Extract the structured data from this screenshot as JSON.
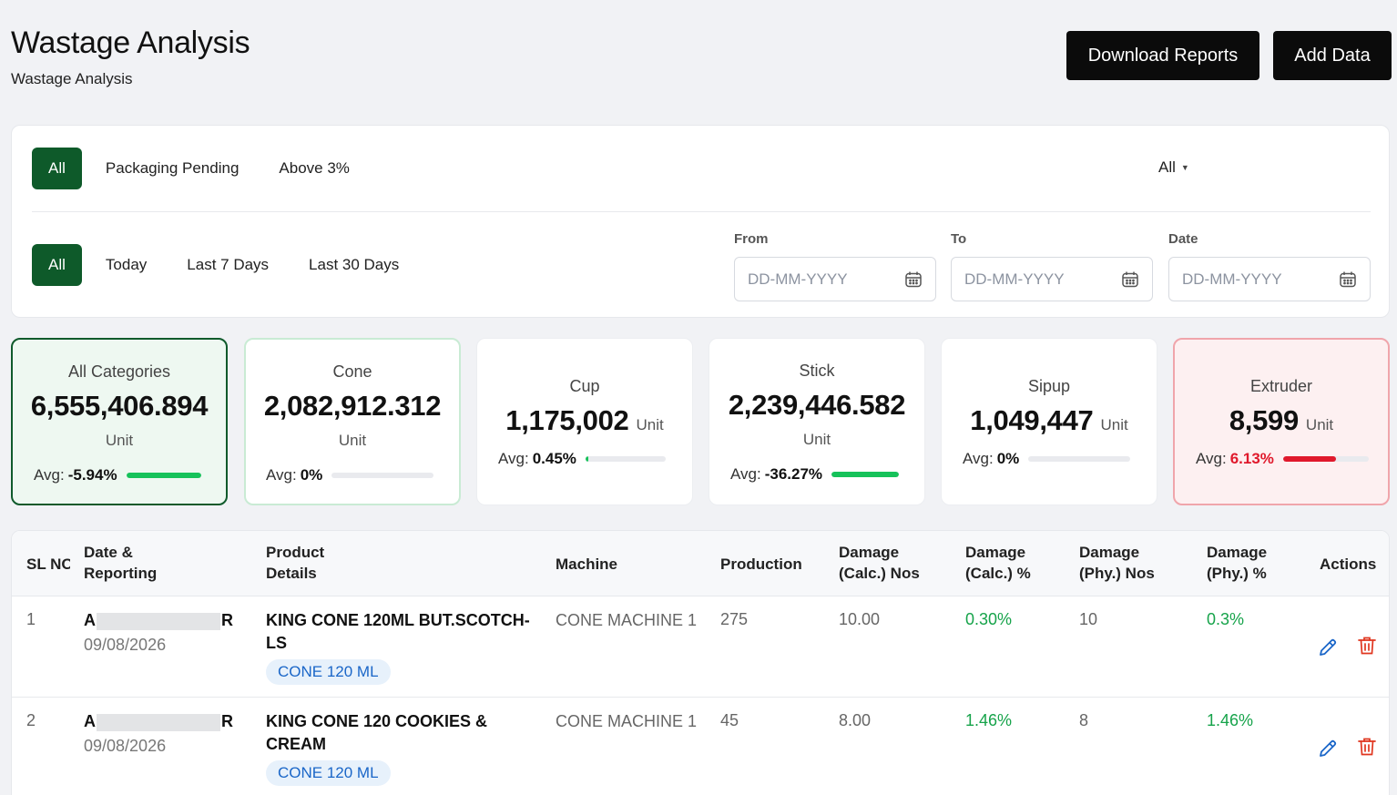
{
  "header": {
    "title": "Wastage Analysis",
    "subtitle": "Wastage Analysis",
    "download_label": "Download Reports",
    "add_label": "Add Data"
  },
  "filters": {
    "status_tabs": [
      "All",
      "Packaging Pending",
      "Above 3%"
    ],
    "status_active": "All",
    "dropdown_value": "All",
    "period_tabs": [
      "All",
      "Today",
      "Last 7 Days",
      "Last 30 Days"
    ],
    "period_active": "All",
    "from_label": "From",
    "to_label": "To",
    "date_label": "Date",
    "date_placeholder": "DD-MM-YYYY"
  },
  "categories": [
    {
      "name": "All Categories",
      "value": "6,555,406.894",
      "unit": "Unit",
      "avg_label": "Avg:",
      "avg": "-5.94%",
      "bar_fraction": 1.0,
      "bar_color": "#16c25a"
    },
    {
      "name": "Cone",
      "value": "2,082,912.312",
      "unit": "Unit",
      "avg_label": "Avg:",
      "avg": "0%",
      "bar_fraction": 0.0,
      "bar_color": "#16c25a"
    },
    {
      "name": "Cup",
      "value": "1,175,002",
      "unit": "Unit",
      "avg_label": "Avg:",
      "avg": "0.45%",
      "bar_fraction": 0.04,
      "bar_color": "#16c25a"
    },
    {
      "name": "Stick",
      "value": "2,239,446.582",
      "unit": "Unit",
      "avg_label": "Avg:",
      "avg": "-36.27%",
      "bar_fraction": 1.0,
      "bar_color": "#16c25a"
    },
    {
      "name": "Sipup",
      "value": "1,049,447",
      "unit": "Unit",
      "avg_label": "Avg:",
      "avg": "0%",
      "bar_fraction": 0.0,
      "bar_color": "#16c25a"
    },
    {
      "name": "Extruder",
      "value": "8,599",
      "unit": "Unit",
      "avg_label": "Avg:",
      "avg": "6.13%",
      "bar_fraction": 0.62,
      "bar_color": "#e0192c"
    }
  ],
  "table": {
    "headers": [
      "SL NO",
      "Date & Reporting",
      "Product Details",
      "Machine",
      "Production",
      "Damage (Calc.) Nos",
      "Damage (Calc.) %",
      "Damage (Phy.) Nos",
      "Damage (Phy.) %",
      "Actions"
    ],
    "rows": [
      {
        "sl": "1",
        "name_start": "A",
        "name_end": "R",
        "date": "09/08/2026",
        "product": "KING CONE 120ML BUT.SCOTCH-LS",
        "tag": "CONE 120 ML",
        "machine": "CONE MACHINE 1",
        "production": "275",
        "calc_nos": "10.00",
        "calc_pct": "0.30%",
        "phy_nos": "10",
        "phy_pct": "0.3%"
      },
      {
        "sl": "2",
        "name_start": "A",
        "name_end": "R",
        "date": "09/08/2026",
        "product": "KING CONE 120 COOKIES & CREAM",
        "tag": "CONE 120 ML",
        "machine": "CONE MACHINE 1",
        "production": "45",
        "calc_nos": "8.00",
        "calc_pct": "1.46%",
        "phy_nos": "8",
        "phy_pct": "1.46%"
      }
    ]
  }
}
